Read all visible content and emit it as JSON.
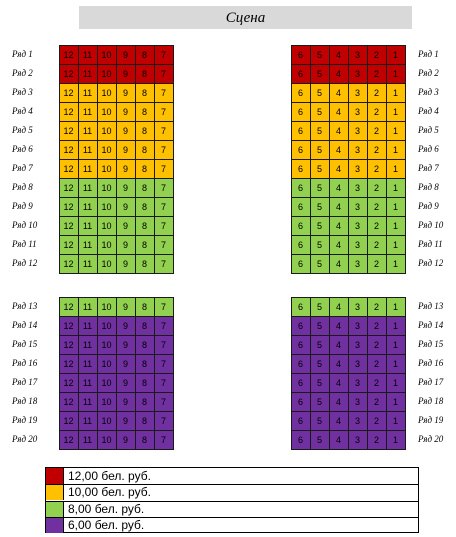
{
  "stage": {
    "label": "Сцена"
  },
  "colors": {
    "red": "#c00000",
    "yellow": "#ffc000",
    "green": "#92d050",
    "purple": "#7030a0"
  },
  "rows": [
    {
      "label": "Ряд 1",
      "color": "red"
    },
    {
      "label": "Ряд 2",
      "color": "red"
    },
    {
      "label": "Ряд 3",
      "color": "yellow"
    },
    {
      "label": "Ряд 4",
      "color": "yellow"
    },
    {
      "label": "Ряд 5",
      "color": "yellow"
    },
    {
      "label": "Ряд 6",
      "color": "yellow"
    },
    {
      "label": "Ряд 7",
      "color": "yellow"
    },
    {
      "label": "Ряд 8",
      "color": "green"
    },
    {
      "label": "Ряд 9",
      "color": "green"
    },
    {
      "label": "Ряд 10",
      "color": "green"
    },
    {
      "label": "Ряд 11",
      "color": "green"
    },
    {
      "label": "Ряд 12",
      "color": "green"
    },
    {
      "label": "Ряд 13",
      "color": "green"
    },
    {
      "label": "Ряд 14",
      "color": "purple"
    },
    {
      "label": "Ряд 15",
      "color": "purple"
    },
    {
      "label": "Ряд 16",
      "color": "purple"
    },
    {
      "label": "Ряд 17",
      "color": "purple"
    },
    {
      "label": "Ряд 18",
      "color": "purple"
    },
    {
      "label": "Ряд 19",
      "color": "purple"
    },
    {
      "label": "Ряд 20",
      "color": "purple"
    }
  ],
  "left_seats": [
    "12",
    "11",
    "10",
    "9",
    "8",
    "7"
  ],
  "right_seats": [
    "6",
    "5",
    "4",
    "3",
    "2",
    "1"
  ],
  "legend": [
    {
      "color": "red",
      "text": "12,00 бел. руб."
    },
    {
      "color": "yellow",
      "text": "10,00 бел. руб."
    },
    {
      "color": "green",
      "text": "8,00 бел. руб."
    },
    {
      "color": "purple",
      "text": "6,00 бел. руб."
    }
  ]
}
